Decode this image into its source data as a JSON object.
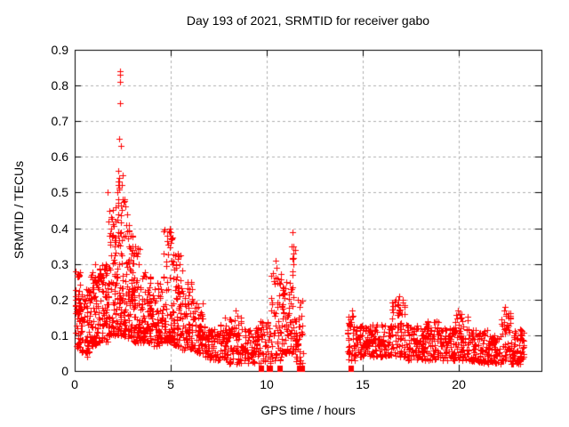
{
  "chart_data": {
    "type": "scatter",
    "title": "Day 193 of 2021, SRMTID for receiver gabo",
    "xlabel": "GPS time / hours",
    "ylabel": "SRMTID / TECUs",
    "xlim": [
      0,
      24.3
    ],
    "ylim": [
      0,
      0.9
    ],
    "xticks": [
      {
        "v": 0,
        "label": "0"
      },
      {
        "v": 5,
        "label": "5"
      },
      {
        "v": 10,
        "label": "10"
      },
      {
        "v": 15,
        "label": "15"
      },
      {
        "v": 20,
        "label": "20"
      }
    ],
    "yticks": [
      {
        "v": 0.0,
        "label": "0"
      },
      {
        "v": 0.1,
        "label": "0.1"
      },
      {
        "v": 0.2,
        "label": "0.2"
      },
      {
        "v": 0.3,
        "label": "0.3"
      },
      {
        "v": 0.4,
        "label": "0.4"
      },
      {
        "v": 0.5,
        "label": "0.5"
      },
      {
        "v": 0.6,
        "label": "0.6"
      },
      {
        "v": 0.7,
        "label": "0.7"
      },
      {
        "v": 0.8,
        "label": "0.8"
      },
      {
        "v": 0.9,
        "label": "0.9"
      }
    ],
    "grid": {
      "show": true,
      "color": "#b0b0b0",
      "dash": [
        3,
        3
      ]
    },
    "frame_color": "#000000",
    "background": "#ffffff",
    "text_color": "#000000",
    "legend": "none",
    "marker": {
      "shape": "plus",
      "size": 7,
      "color": "#ff0000"
    },
    "series": [
      {
        "name": "SRMTID",
        "color": "#ff0000",
        "seed": 20210713,
        "data_gap_hours": [
          11.9,
          14.2
        ],
        "envelope_bins": [
          [
            0.0,
            0.3,
            55,
            0.06,
            0.28,
            1.3
          ],
          [
            0.3,
            0.8,
            70,
            0.05,
            0.23,
            1.4
          ],
          [
            0.8,
            1.3,
            75,
            0.07,
            0.3,
            1.4
          ],
          [
            1.3,
            1.8,
            70,
            0.08,
            0.3,
            1.2
          ],
          [
            1.8,
            2.2,
            75,
            0.1,
            0.46,
            1.5
          ],
          [
            2.2,
            2.6,
            85,
            0.1,
            0.55,
            1.8
          ],
          [
            2.6,
            3.0,
            75,
            0.09,
            0.42,
            1.6
          ],
          [
            3.0,
            3.4,
            65,
            0.08,
            0.35,
            1.5
          ],
          [
            3.4,
            4.0,
            80,
            0.08,
            0.28,
            1.4
          ],
          [
            4.0,
            4.6,
            75,
            0.07,
            0.25,
            1.4
          ],
          [
            4.6,
            5.1,
            70,
            0.08,
            0.4,
            1.7
          ],
          [
            5.1,
            5.6,
            70,
            0.07,
            0.33,
            1.6
          ],
          [
            5.6,
            6.2,
            75,
            0.06,
            0.25,
            1.5
          ],
          [
            6.2,
            6.7,
            55,
            0.05,
            0.19,
            1.3
          ],
          [
            6.7,
            7.5,
            70,
            0.03,
            0.13,
            1.2
          ],
          [
            7.5,
            8.0,
            50,
            0.03,
            0.13,
            1.2
          ],
          [
            8.0,
            8.7,
            60,
            0.02,
            0.15,
            1.4
          ],
          [
            8.7,
            9.5,
            65,
            0.02,
            0.12,
            1.2
          ],
          [
            9.5,
            10.2,
            55,
            0.02,
            0.14,
            1.3
          ],
          [
            10.2,
            10.8,
            55,
            0.03,
            0.28,
            1.8
          ],
          [
            10.8,
            11.2,
            45,
            0.05,
            0.25,
            1.6
          ],
          [
            11.2,
            11.5,
            40,
            0.05,
            0.37,
            1.7
          ],
          [
            11.5,
            11.9,
            40,
            0.02,
            0.2,
            1.5
          ],
          [
            14.2,
            14.6,
            40,
            0.03,
            0.16,
            1.3
          ],
          [
            14.6,
            15.4,
            75,
            0.04,
            0.13,
            1.2
          ],
          [
            15.4,
            16.5,
            95,
            0.04,
            0.13,
            1.2
          ],
          [
            16.5,
            17.2,
            65,
            0.04,
            0.2,
            1.5
          ],
          [
            17.2,
            18.2,
            90,
            0.03,
            0.13,
            1.2
          ],
          [
            18.2,
            19.0,
            75,
            0.03,
            0.14,
            1.3
          ],
          [
            19.0,
            19.8,
            70,
            0.03,
            0.12,
            1.2
          ],
          [
            19.8,
            20.5,
            60,
            0.03,
            0.16,
            1.4
          ],
          [
            20.5,
            21.5,
            85,
            0.02,
            0.12,
            1.3
          ],
          [
            21.5,
            22.2,
            65,
            0.02,
            0.1,
            1.2
          ],
          [
            22.2,
            22.7,
            50,
            0.03,
            0.17,
            1.5
          ],
          [
            22.7,
            23.4,
            70,
            0.02,
            0.12,
            1.3
          ]
        ],
        "peak_points": [
          [
            0.05,
            0.28
          ],
          [
            0.65,
            0.04
          ],
          [
            1.05,
            0.3
          ],
          [
            1.72,
            0.5
          ],
          [
            1.78,
            0.42
          ],
          [
            1.8,
            0.38
          ],
          [
            2.21,
            0.5
          ],
          [
            2.28,
            0.56
          ],
          [
            2.3,
            0.53
          ],
          [
            2.33,
            0.54
          ],
          [
            2.35,
            0.84
          ],
          [
            2.36,
            0.83
          ],
          [
            2.36,
            0.81
          ],
          [
            2.37,
            0.75
          ],
          [
            2.3,
            0.65
          ],
          [
            2.42,
            0.63
          ],
          [
            2.44,
            0.52
          ],
          [
            2.5,
            0.48
          ],
          [
            2.62,
            0.46
          ],
          [
            2.75,
            0.44
          ],
          [
            3.02,
            0.35
          ],
          [
            3.08,
            0.33
          ],
          [
            4.95,
            0.4
          ],
          [
            5.0,
            0.39
          ],
          [
            5.02,
            0.36
          ],
          [
            5.05,
            0.31
          ],
          [
            5.35,
            0.33
          ],
          [
            5.45,
            0.3
          ],
          [
            6.35,
            0.19
          ],
          [
            6.45,
            0.18
          ],
          [
            7.8,
            0.15
          ],
          [
            8.4,
            0.17
          ],
          [
            8.45,
            0.155
          ],
          [
            10.45,
            0.31
          ],
          [
            10.5,
            0.29
          ],
          [
            10.55,
            0.26
          ],
          [
            11.3,
            0.35
          ],
          [
            11.32,
            0.28
          ],
          [
            11.35,
            0.39
          ],
          [
            11.38,
            0.33
          ],
          [
            11.4,
            0.3
          ],
          [
            14.42,
            0.17
          ],
          [
            14.48,
            0.155
          ],
          [
            16.85,
            0.2
          ],
          [
            16.9,
            0.21
          ],
          [
            17.1,
            0.2
          ],
          [
            17.15,
            0.185
          ],
          [
            19.95,
            0.17
          ],
          [
            20.05,
            0.16
          ],
          [
            20.15,
            0.15
          ],
          [
            22.35,
            0.17
          ],
          [
            22.42,
            0.18
          ],
          [
            22.45,
            0.16
          ],
          [
            22.55,
            0.155
          ]
        ],
        "zero_value_runs": [
          [
            9.56,
            9.88
          ],
          [
            10.0,
            10.3
          ],
          [
            10.55,
            10.85
          ],
          [
            11.55,
            12.0
          ],
          [
            14.25,
            14.55
          ]
        ]
      }
    ]
  }
}
